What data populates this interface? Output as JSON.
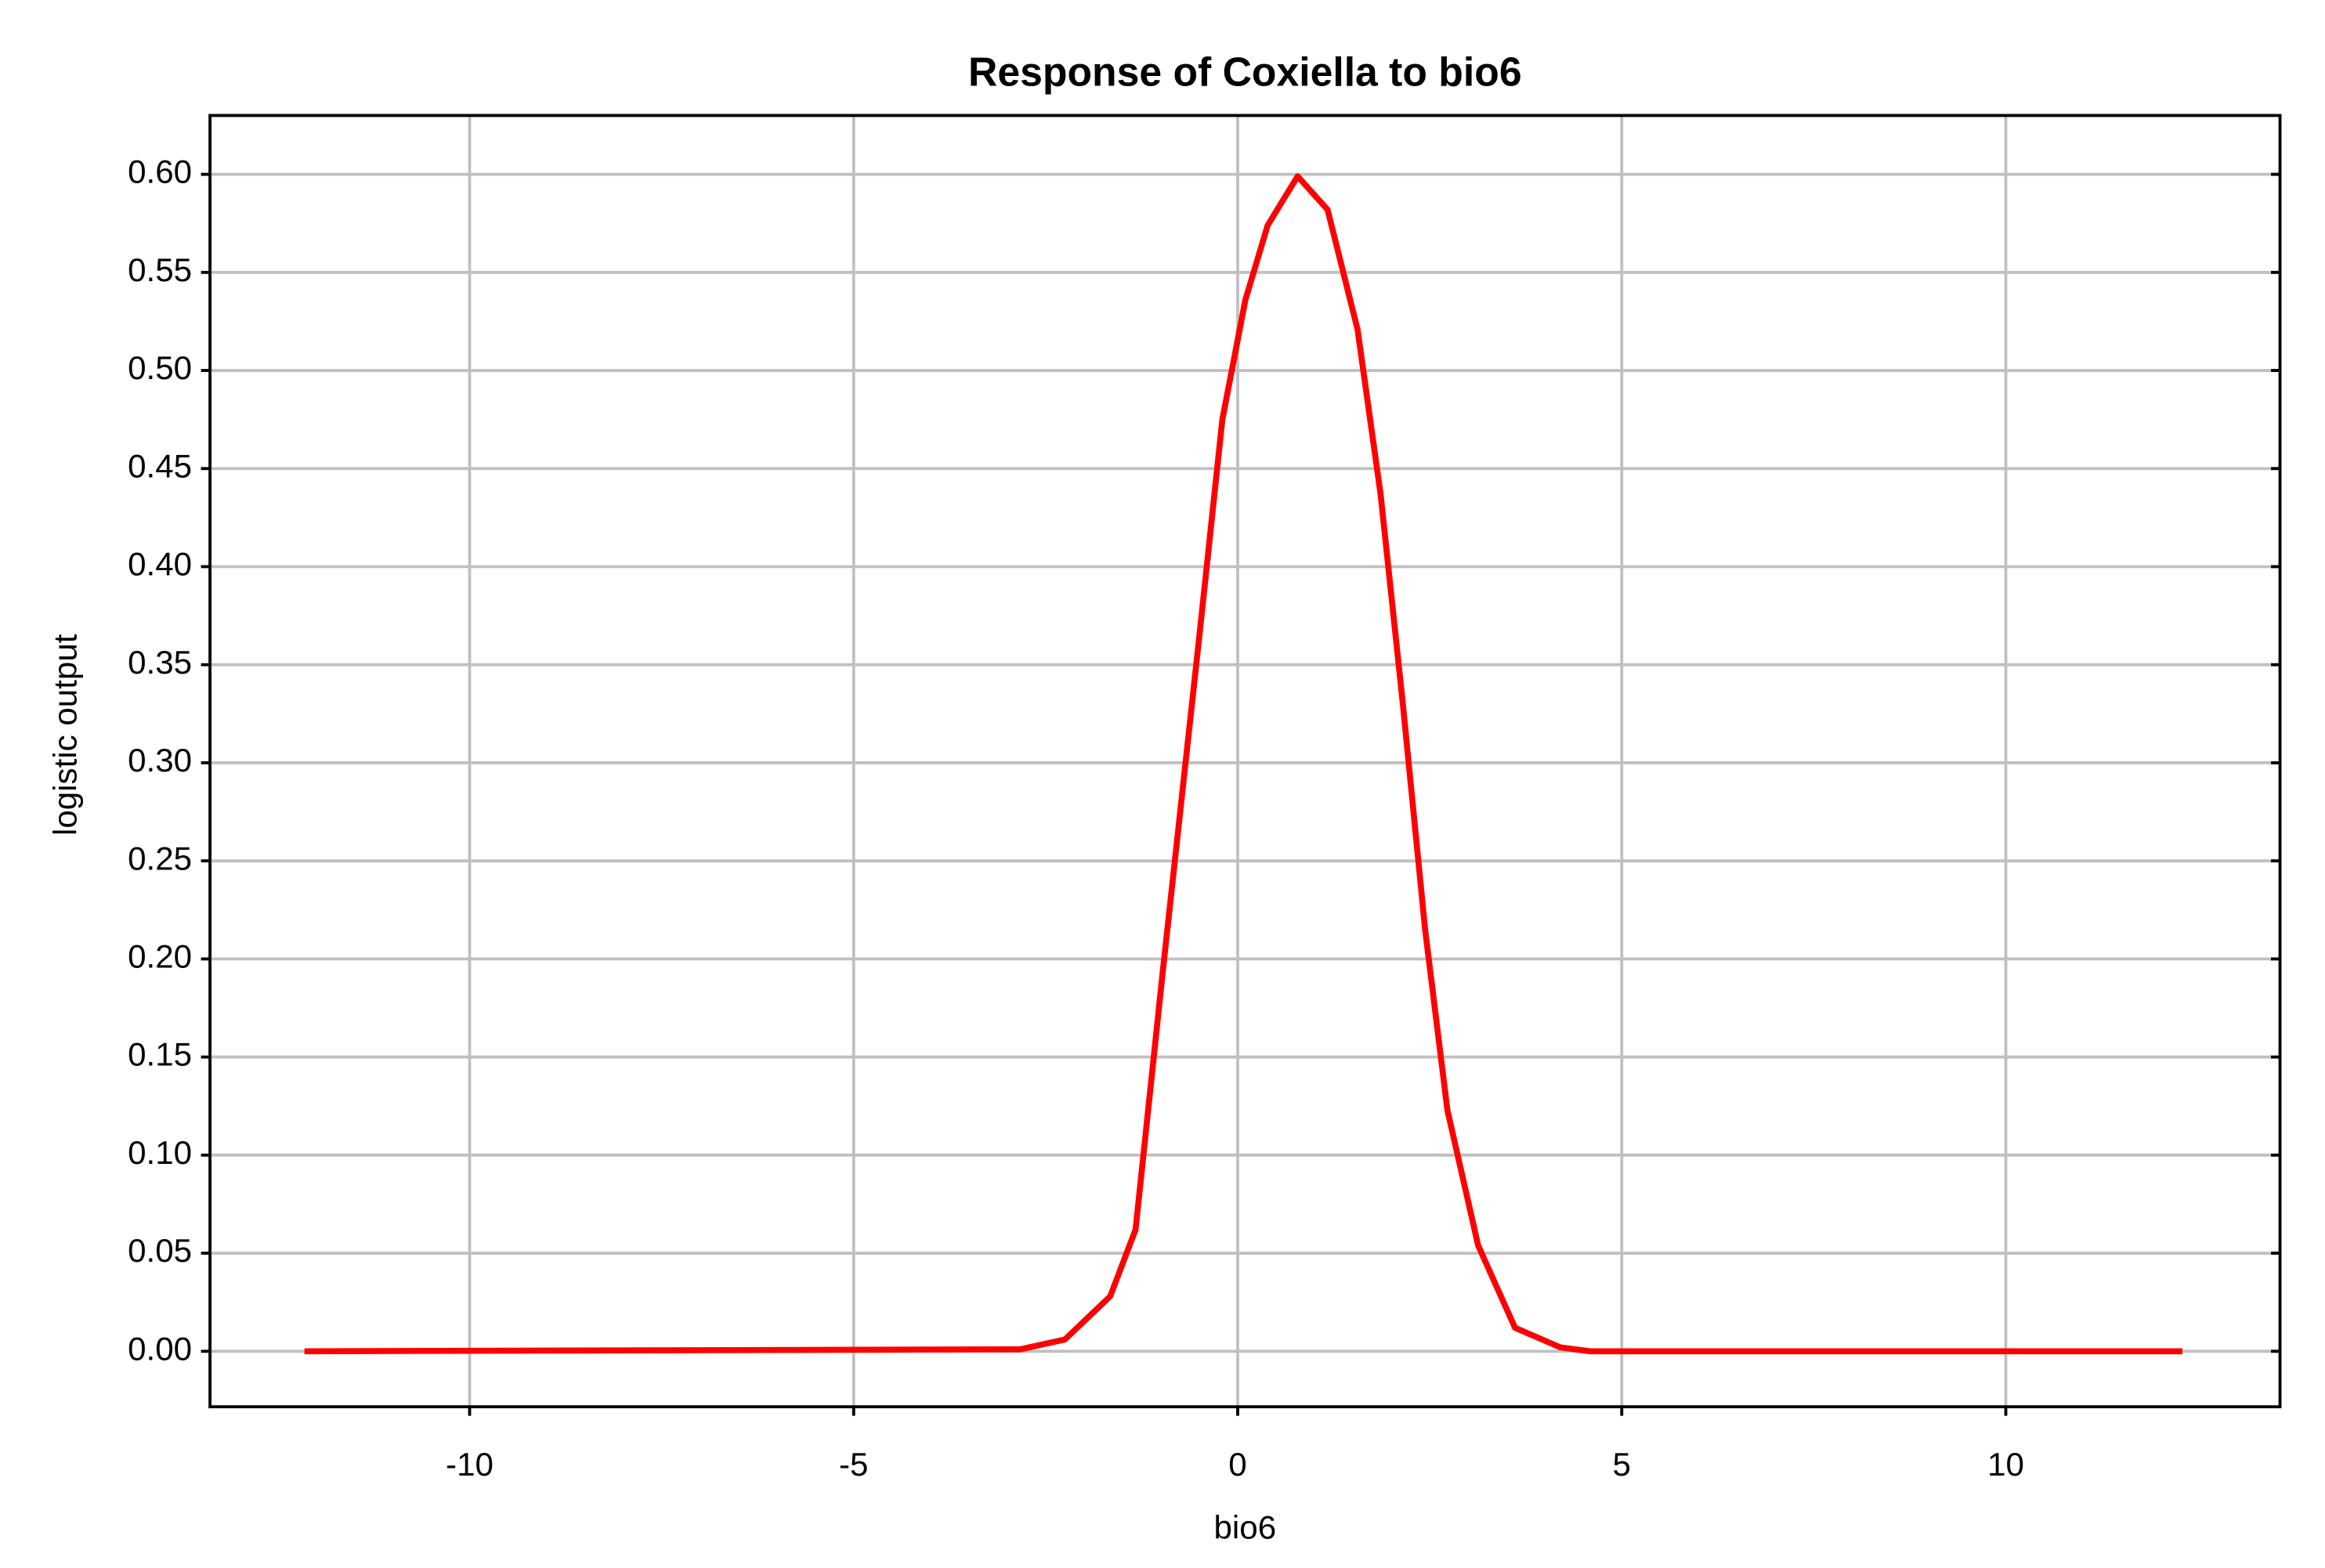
{
  "chart_data": {
    "type": "line",
    "title": "Response of Coxiella to bio6",
    "x_label": "bio6",
    "y_label": "logistic output",
    "xlim": [
      -13.38,
      13.57
    ],
    "ylim": [
      -0.0283,
      0.63
    ],
    "xticks": [
      -10,
      -5,
      0,
      5,
      10
    ],
    "yticks": [
      {
        "value": 0,
        "label": "0.00"
      },
      {
        "value": 0.05,
        "label": "0.05"
      },
      {
        "value": 0.1,
        "label": "0.10"
      },
      {
        "value": 0.15,
        "label": "0.15"
      },
      {
        "value": 0.2,
        "label": "0.20"
      },
      {
        "value": 0.25,
        "label": "0.25"
      },
      {
        "value": 0.3,
        "label": "0.30"
      },
      {
        "value": 0.35,
        "label": "0.35"
      },
      {
        "value": 0.4,
        "label": "0.40"
      },
      {
        "value": 0.45,
        "label": "0.45"
      },
      {
        "value": 0.5,
        "label": "0.50"
      },
      {
        "value": 0.55,
        "label": "0.55"
      },
      {
        "value": 0.6,
        "label": "0.60"
      }
    ],
    "grid": true,
    "series": [
      {
        "color": "#ff0000",
        "x": [
          -12.15,
          -2.83,
          -2.25,
          -1.66,
          -1.33,
          -0.98,
          -0.49,
          -0.2,
          0.1,
          0.39,
          0.78,
          1.17,
          1.56,
          1.86,
          2.15,
          2.44,
          2.73,
          3.13,
          3.61,
          4.2,
          4.59,
          12.3
        ],
        "values": [
          0,
          0.001,
          0.006,
          0.028,
          0.062,
          0.192,
          0.368,
          0.475,
          0.536,
          0.574,
          0.599,
          0.582,
          0.521,
          0.437,
          0.33,
          0.215,
          0.123,
          0.054,
          0.012,
          0.002,
          0,
          0
        ]
      }
    ]
  }
}
